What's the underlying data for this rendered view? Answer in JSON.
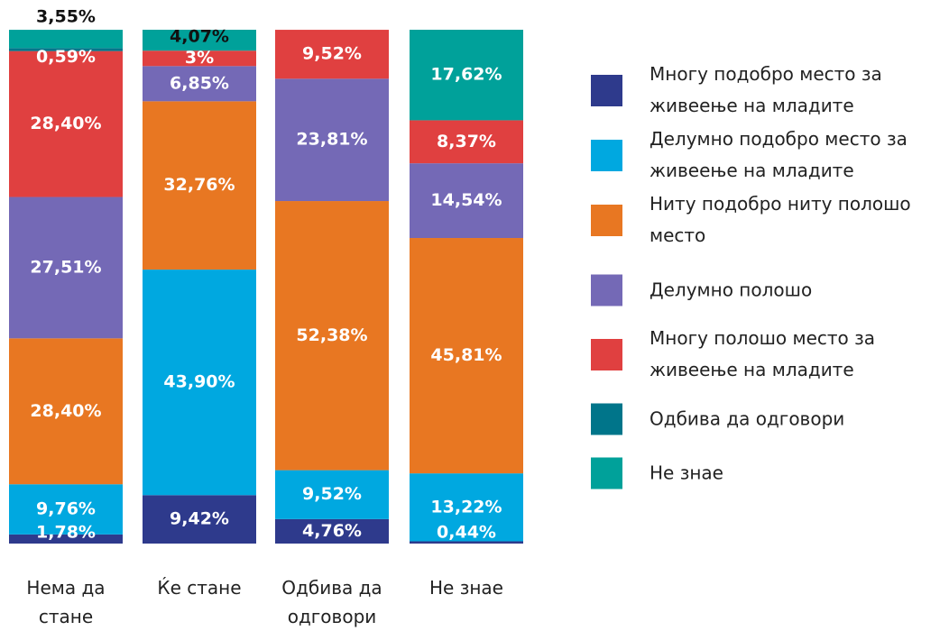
{
  "chart_data": {
    "type": "stacked_bar",
    "categories": [
      "Нема да стане",
      "Ќе стане",
      "Одбива да одговори",
      "Не знае"
    ],
    "ylim": [
      0,
      100
    ],
    "series": [
      {
        "name": "Многу подобро место за живеење на младите",
        "color": "#2e3a8c",
        "values": [
          1.78,
          9.42,
          4.76,
          0.44
        ],
        "value_labels": [
          "1,78%",
          "9,42%",
          "4,76%",
          "0,44%"
        ]
      },
      {
        "name": "Делумно подобро место за живеење на младите",
        "color": "#00a8e0",
        "values": [
          9.76,
          43.9,
          9.52,
          13.22
        ],
        "value_labels": [
          "9,76%",
          "43,90%",
          "9,52%",
          "13,22%"
        ]
      },
      {
        "name": "Ниту подобро ниту полошо место",
        "color": "#e87722",
        "values": [
          28.4,
          32.76,
          52.38,
          45.81
        ],
        "value_labels": [
          "28,40%",
          "32,76%",
          "52,38%",
          "45,81%"
        ]
      },
      {
        "name": "Делумно полошо",
        "color": "#7469b6",
        "values": [
          27.51,
          6.85,
          23.81,
          14.54
        ],
        "value_labels": [
          "27,51%",
          "6,85%",
          "23,81%",
          "14,54%"
        ]
      },
      {
        "name": "Многу полошо место за живеење на младите",
        "color": "#e04040",
        "values": [
          28.4,
          3,
          9.52,
          8.37
        ],
        "value_labels": [
          "28,40%",
          "3%",
          "9,52%",
          "8,37%"
        ]
      },
      {
        "name": "Одбива да одговори",
        "color": "#00758a",
        "values": [
          0.59,
          null,
          null,
          null
        ],
        "value_labels": [
          "0,59%",
          null,
          null,
          null
        ]
      },
      {
        "name": "Не знае",
        "color": "#00a19a",
        "values": [
          3.55,
          4.07,
          null,
          17.62
        ],
        "value_labels": [
          "3,55%",
          "4,07%",
          null,
          "17,62%"
        ]
      }
    ]
  }
}
